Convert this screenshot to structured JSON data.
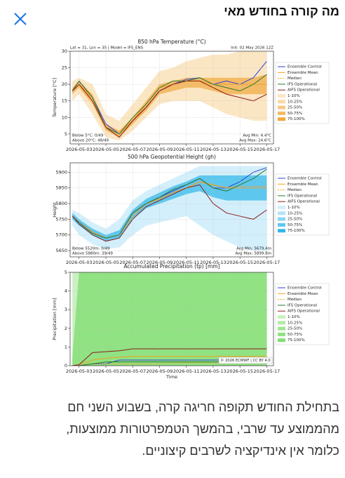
{
  "header": {
    "title": "מה קורה בחודש מאי"
  },
  "chart_data": [
    {
      "type": "line",
      "title": "850 hPa Temperature (°C)",
      "subtitle_left": "Lat = 31, Lon = 35 | Model = IFS_ENS",
      "subtitle_right": "Init: 02 May 2026 12Z",
      "ylabel": "Temperature [°C]",
      "x": [
        "2026-05-02T12:00",
        "2026-05-03",
        "2026-05-04",
        "2026-05-05",
        "2026-05-06",
        "2026-05-07",
        "2026-05-08",
        "2026-05-09",
        "2026-05-10",
        "2026-05-11",
        "2026-05-12",
        "2026-05-13",
        "2026-05-14",
        "2026-05-15",
        "2026-05-16",
        "2026-05-17"
      ],
      "xlim": [
        "2026-05-02T08:00",
        "2026-05-17T12:00"
      ],
      "xticks": [
        "2026-05-03",
        "2026-05-05",
        "2026-05-07",
        "2026-05-09",
        "2026-05-11",
        "2026-05-13",
        "2026-05-15",
        "2026-05-17"
      ],
      "ylim": [
        2,
        30
      ],
      "yticks": [
        5,
        10,
        15,
        20,
        25,
        30
      ],
      "grid": true,
      "legend": "upper-right",
      "series": [
        {
          "name": "Ensemble Control",
          "color": "#2f3fd6",
          "values": [
            18,
            21,
            16,
            8,
            5,
            9,
            13,
            18,
            20,
            21.5,
            22,
            20,
            21,
            20,
            22,
            27
          ]
        },
        {
          "name": "Ensemble Mean",
          "color": "#f0a020",
          "values": [
            18,
            20,
            16,
            7,
            5,
            9,
            14,
            19,
            20,
            21,
            21,
            20,
            20,
            20,
            20,
            20
          ]
        },
        {
          "name": "Median",
          "color": "#f0a020",
          "dash": true,
          "values": [
            18,
            20,
            16,
            7,
            5,
            9,
            14,
            19,
            20,
            21,
            21,
            20,
            20,
            20,
            20,
            20
          ]
        },
        {
          "name": "IFS Operational",
          "color": "#2a7a2a",
          "values": [
            18,
            21,
            16,
            7,
            5,
            10,
            14,
            19,
            21,
            21,
            22,
            20,
            19,
            18,
            20,
            23
          ]
        },
        {
          "name": "AIFS Operational",
          "color": "#8b1a1a",
          "values": [
            18,
            20,
            15,
            7,
            4,
            9,
            13,
            18,
            20,
            21,
            21,
            19,
            17,
            16,
            15,
            17
          ]
        }
      ],
      "bands": [
        {
          "name": "1-10%",
          "color": "#fbe6c4",
          "low": [
            15,
            17,
            11,
            4,
            3,
            6,
            10,
            14,
            15,
            15,
            15,
            13,
            11,
            10,
            9,
            9
          ],
          "high": [
            21,
            22,
            20,
            11,
            9,
            14,
            19,
            24,
            25,
            27,
            28,
            29,
            29,
            30,
            30,
            30
          ]
        },
        {
          "name": "10-25%",
          "color": "#f9d9a6"
        },
        {
          "name": "25-50%",
          "color": "#f6c985"
        },
        {
          "name": "50-75%",
          "color": "#f4bb66",
          "low": [
            17,
            19,
            14,
            6,
            4,
            8,
            12,
            17,
            18,
            19,
            19,
            18,
            17,
            17,
            17,
            17
          ],
          "high": [
            19,
            21,
            17,
            8,
            6,
            10,
            15,
            20,
            21,
            22,
            22,
            22,
            22,
            22,
            22,
            23
          ]
        },
        {
          "name": "75-100%",
          "color": "#f1a93c"
        }
      ],
      "notes_left": [
        "Below 5°C: 0/49",
        "Above 20°C: 48/49"
      ],
      "notes_right": [
        "Avg Min: 4.4°C",
        "Avg Max: 24.6°C"
      ]
    },
    {
      "type": "line",
      "title": "500 hPa Geopotential Height (gh)",
      "ylabel": "Height",
      "x": [
        "2026-05-02T12:00",
        "2026-05-03",
        "2026-05-04",
        "2026-05-05",
        "2026-05-06",
        "2026-05-07",
        "2026-05-08",
        "2026-05-09",
        "2026-05-10",
        "2026-05-11",
        "2026-05-12",
        "2026-05-13",
        "2026-05-14",
        "2026-05-15",
        "2026-05-16",
        "2026-05-17"
      ],
      "xlim": [
        "2026-05-02T08:00",
        "2026-05-17T12:00"
      ],
      "xticks": [
        "2026-05-03",
        "2026-05-05",
        "2026-05-07",
        "2026-05-09",
        "2026-05-11",
        "2026-05-13",
        "2026-05-15",
        "2026-05-17"
      ],
      "ylim": [
        5630,
        5930
      ],
      "yticks": [
        5650,
        5700,
        5750,
        5800,
        5850,
        5900
      ],
      "grid": true,
      "legend": "upper-right",
      "series": [
        {
          "name": "Ensemble Control",
          "color": "#2f3fd6",
          "values": [
            5760,
            5740,
            5710,
            5690,
            5700,
            5770,
            5800,
            5820,
            5840,
            5860,
            5880,
            5850,
            5850,
            5870,
            5900,
            5915
          ]
        },
        {
          "name": "Ensemble Mean",
          "color": "#f0a020",
          "values": [
            5760,
            5740,
            5710,
            5690,
            5700,
            5760,
            5800,
            5815,
            5835,
            5850,
            5870,
            5860,
            5850,
            5850,
            5850,
            5850
          ]
        },
        {
          "name": "Median",
          "color": "#f0a020",
          "dash": true,
          "values": [
            5760,
            5740,
            5710,
            5690,
            5700,
            5760,
            5800,
            5815,
            5835,
            5850,
            5868,
            5858,
            5852,
            5855,
            5855,
            5855
          ]
        },
        {
          "name": "IFS Operational",
          "color": "#2a7a2a",
          "values": [
            5760,
            5740,
            5705,
            5690,
            5700,
            5770,
            5800,
            5820,
            5845,
            5860,
            5880,
            5850,
            5840,
            5860,
            5880,
            5910
          ]
        },
        {
          "name": "AIFS Operational",
          "color": "#8b1a1a",
          "values": [
            5760,
            5735,
            5700,
            5680,
            5690,
            5750,
            5790,
            5810,
            5830,
            5850,
            5860,
            5800,
            5770,
            5760,
            5750,
            5780
          ]
        }
      ],
      "bands": [
        {
          "name": "1-10%",
          "color": "#d3effb",
          "low": [
            5730,
            5700,
            5670,
            5655,
            5660,
            5700,
            5730,
            5740,
            5750,
            5760,
            5730,
            5700,
            5680,
            5660,
            5650,
            5650
          ],
          "high": [
            5780,
            5770,
            5740,
            5720,
            5750,
            5810,
            5840,
            5860,
            5880,
            5900,
            5920,
            5920,
            5920,
            5920,
            5920,
            5920
          ]
        },
        {
          "name": "10-25%",
          "color": "#b2e3f7"
        },
        {
          "name": "25-50%",
          "color": "#8ad5f2"
        },
        {
          "name": "50-75%",
          "color": "#5ec7ee",
          "low": [
            5750,
            5730,
            5700,
            5680,
            5690,
            5750,
            5785,
            5800,
            5815,
            5830,
            5840,
            5820,
            5810,
            5810,
            5810,
            5810
          ],
          "high": [
            5770,
            5750,
            5720,
            5700,
            5715,
            5780,
            5815,
            5835,
            5855,
            5870,
            5890,
            5890,
            5890,
            5890,
            5890,
            5890
          ]
        },
        {
          "name": "75-100%",
          "color": "#35b8ea"
        }
      ],
      "notes_left": [
        "Below 5520m: 0/49",
        "Above 5880m: 39/49"
      ],
      "notes_right": [
        "Avg Min: 5679.4m",
        "Avg Max: 5899.8m"
      ]
    },
    {
      "type": "line",
      "title": "Accumulated Precipitation (tp) [mm]",
      "ylabel": "Precipitation [mm]",
      "xlabel": "Time",
      "x": [
        "2026-05-02T12:00",
        "2026-05-03",
        "2026-05-04",
        "2026-05-05",
        "2026-05-06",
        "2026-05-07",
        "2026-05-08",
        "2026-05-09",
        "2026-05-10",
        "2026-05-11",
        "2026-05-12",
        "2026-05-13",
        "2026-05-14",
        "2026-05-15",
        "2026-05-16",
        "2026-05-17"
      ],
      "xlim": [
        "2026-05-02T08:00",
        "2026-05-17T12:00"
      ],
      "xticks": [
        "2026-05-03",
        "2026-05-05",
        "2026-05-07",
        "2026-05-09",
        "2026-05-11",
        "2026-05-13",
        "2026-05-15",
        "2026-05-17"
      ],
      "ylim": [
        0,
        5
      ],
      "yticks": [
        0,
        1,
        2,
        3,
        4,
        5
      ],
      "grid": true,
      "legend": "upper-right",
      "series": [
        {
          "name": "Ensemble Control",
          "color": "#2f3fd6",
          "values": [
            0,
            0,
            0.1,
            0.1,
            0.3,
            0.3,
            0.3,
            0.3,
            0.3,
            0.3,
            0.3,
            0.3,
            0.3,
            0.3,
            0.3,
            0.3
          ]
        },
        {
          "name": "Ensemble Mean",
          "color": "#f0a020",
          "values": [
            0,
            0.05,
            0.3,
            0.4,
            0.45,
            0.5,
            0.5,
            0.5,
            0.5,
            0.5,
            0.5,
            0.5,
            0.5,
            0.5,
            0.5,
            0.5
          ]
        },
        {
          "name": "Median",
          "color": "#f0a020",
          "dash": true,
          "values": [
            0,
            0,
            0.1,
            0.1,
            0.1,
            0.1,
            0.1,
            0.1,
            0.15,
            0.15,
            0.15,
            0.15,
            0.15,
            0.15,
            0.15,
            0.15
          ]
        },
        {
          "name": "IFS Operational",
          "color": "#2a7a2a",
          "values": [
            0,
            0,
            0.1,
            0.2,
            0.2,
            0.2,
            0.2,
            0.2,
            0.2,
            0.2,
            0.2,
            0.2,
            0.2,
            0.2,
            0.2,
            0.2
          ]
        },
        {
          "name": "AIFS Operational",
          "color": "#8b1a1a",
          "values": [
            0,
            0.05,
            0.7,
            0.75,
            0.8,
            0.9,
            0.9,
            0.9,
            0.9,
            0.9,
            0.9,
            0.9,
            0.9,
            0.9,
            0.9,
            0.9
          ]
        }
      ],
      "bands": [
        {
          "name": "1-10%",
          "color": "#c9f0c1",
          "low": [
            0,
            0,
            0,
            0,
            0,
            0,
            0,
            0,
            0,
            0,
            0,
            0,
            0,
            0,
            0,
            0
          ],
          "high": [
            5,
            5,
            5,
            5,
            5,
            5,
            5,
            5,
            5,
            5,
            5,
            5,
            5,
            5,
            5,
            5
          ]
        },
        {
          "name": "10-25%",
          "color": "#b3eba8"
        },
        {
          "name": "25-50%",
          "color": "#a0e693"
        },
        {
          "name": "50-75%",
          "color": "#90e282",
          "low": [
            0,
            0,
            0,
            0,
            0,
            0,
            0,
            0,
            0,
            0,
            0,
            0,
            0,
            0,
            0,
            0
          ],
          "high": [
            0.5,
            5,
            5,
            5,
            5,
            5,
            5,
            5,
            5,
            5,
            5,
            5,
            5,
            5,
            5,
            5
          ]
        },
        {
          "name": "75-100%",
          "color": "#84de74"
        }
      ],
      "copyright": "© 2026 ECMWF | CC BY 4.0"
    }
  ],
  "body": {
    "lines": [
      "בתחילת החודש תקופה חריגה קרה, בשבוע השני חם",
      "מהממוצע עד שרבי, בהמשך הטמפרטורות ממוצעות,",
      "כלומר אין אינדיקציה לשרבים קיצוניים."
    ]
  }
}
